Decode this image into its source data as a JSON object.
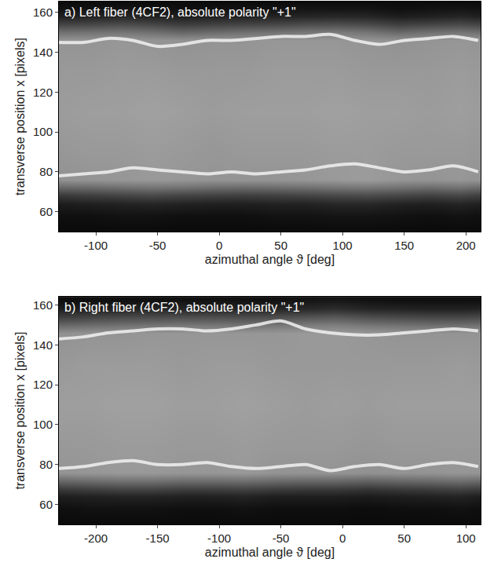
{
  "chart_data": [
    {
      "type": "heatmap",
      "title": "a) Left fiber (4CF2), absolute polarity \"+1\"",
      "x_label": "azimuthal angle ϑ [deg]",
      "y_label": "transverse position x [pixels]",
      "x": [
        -130,
        -105,
        -80,
        -55,
        -30,
        -5,
        20,
        45,
        70,
        95,
        120,
        145,
        170,
        195,
        212
      ],
      "y": [
        50,
        58,
        64,
        68,
        72,
        76,
        90,
        110,
        130,
        146,
        150,
        154,
        158,
        162,
        166
      ],
      "z": [
        [
          0.04,
          0.04,
          0.04,
          0.04,
          0.04,
          0.04,
          0.04,
          0.04,
          0.04,
          0.04,
          0.04,
          0.04,
          0.04,
          0.04,
          0.04
        ],
        [
          0.06,
          0.06,
          0.07,
          0.07,
          0.06,
          0.06,
          0.06,
          0.07,
          0.07,
          0.08,
          0.08,
          0.07,
          0.06,
          0.07,
          0.06
        ],
        [
          0.11,
          0.12,
          0.13,
          0.14,
          0.13,
          0.12,
          0.12,
          0.13,
          0.13,
          0.15,
          0.15,
          0.13,
          0.12,
          0.14,
          0.12
        ],
        [
          0.22,
          0.24,
          0.26,
          0.28,
          0.26,
          0.25,
          0.24,
          0.25,
          0.26,
          0.28,
          0.29,
          0.27,
          0.25,
          0.27,
          0.24
        ],
        [
          0.4,
          0.41,
          0.43,
          0.45,
          0.44,
          0.42,
          0.41,
          0.42,
          0.43,
          0.45,
          0.46,
          0.44,
          0.42,
          0.44,
          0.41
        ],
        [
          0.57,
          0.58,
          0.59,
          0.6,
          0.59,
          0.58,
          0.58,
          0.58,
          0.59,
          0.6,
          0.61,
          0.59,
          0.58,
          0.59,
          0.58
        ],
        [
          0.59,
          0.6,
          0.6,
          0.61,
          0.6,
          0.59,
          0.6,
          0.6,
          0.6,
          0.61,
          0.61,
          0.6,
          0.6,
          0.6,
          0.59
        ],
        [
          0.61,
          0.62,
          0.62,
          0.63,
          0.62,
          0.61,
          0.62,
          0.62,
          0.62,
          0.63,
          0.62,
          0.62,
          0.61,
          0.62,
          0.61
        ],
        [
          0.6,
          0.6,
          0.61,
          0.61,
          0.6,
          0.6,
          0.6,
          0.61,
          0.61,
          0.61,
          0.6,
          0.6,
          0.6,
          0.61,
          0.6
        ],
        [
          0.58,
          0.58,
          0.59,
          0.58,
          0.57,
          0.58,
          0.58,
          0.59,
          0.59,
          0.59,
          0.58,
          0.57,
          0.58,
          0.59,
          0.58
        ],
        [
          0.44,
          0.45,
          0.46,
          0.44,
          0.4,
          0.42,
          0.44,
          0.45,
          0.47,
          0.48,
          0.46,
          0.41,
          0.44,
          0.46,
          0.44
        ],
        [
          0.27,
          0.28,
          0.3,
          0.28,
          0.24,
          0.26,
          0.27,
          0.28,
          0.3,
          0.31,
          0.29,
          0.25,
          0.27,
          0.29,
          0.27
        ],
        [
          0.13,
          0.14,
          0.15,
          0.14,
          0.12,
          0.13,
          0.14,
          0.14,
          0.15,
          0.16,
          0.15,
          0.12,
          0.13,
          0.15,
          0.13
        ],
        [
          0.07,
          0.07,
          0.08,
          0.07,
          0.06,
          0.07,
          0.07,
          0.07,
          0.08,
          0.08,
          0.08,
          0.06,
          0.07,
          0.08,
          0.07
        ],
        [
          0.04,
          0.04,
          0.04,
          0.04,
          0.04,
          0.04,
          0.04,
          0.04,
          0.04,
          0.04,
          0.04,
          0.04,
          0.04,
          0.04,
          0.04
        ]
      ],
      "zlim": [
        0,
        1
      ],
      "xlim": [
        -130,
        212
      ],
      "xticks": [
        -100,
        -50,
        0,
        50,
        100,
        150,
        200
      ],
      "ylim": [
        50,
        165.5
      ],
      "yticks": [
        60,
        80,
        100,
        120,
        140,
        160
      ],
      "series": [
        {
          "type": "line",
          "color": "#f2f2f2",
          "x": [
            -130,
            -110,
            -90,
            -70,
            -50,
            -30,
            -10,
            10,
            30,
            50,
            70,
            90,
            110,
            130,
            150,
            170,
            190,
            210
          ],
          "values": [
            78,
            79,
            80,
            82,
            81,
            80,
            79,
            80,
            79,
            80,
            81,
            83,
            84,
            82,
            80,
            81,
            83,
            80
          ]
        },
        {
          "type": "line",
          "color": "#f2f2f2",
          "x": [
            -130,
            -110,
            -90,
            -70,
            -50,
            -30,
            -10,
            10,
            30,
            50,
            70,
            90,
            110,
            130,
            150,
            170,
            190,
            210
          ],
          "values": [
            145,
            145,
            147,
            146,
            143,
            144,
            146,
            146,
            147,
            148,
            148,
            149,
            146,
            144,
            146,
            147,
            148,
            146
          ]
        }
      ]
    },
    {
      "type": "heatmap",
      "title": "b) Right fiber (4CF2), absolute polarity \"+1\"",
      "x_label": "azimuthal angle ϑ [deg]",
      "y_label": "transverse position x [pixels]",
      "x": [
        -230,
        -205,
        -180,
        -155,
        -130,
        -105,
        -80,
        -55,
        -30,
        -5,
        20,
        45,
        70,
        95,
        112
      ],
      "y": [
        50,
        58,
        64,
        68,
        72,
        76,
        90,
        110,
        130,
        146,
        150,
        154,
        158,
        162,
        166
      ],
      "z": [
        [
          0.04,
          0.04,
          0.04,
          0.04,
          0.04,
          0.04,
          0.04,
          0.04,
          0.04,
          0.04,
          0.04,
          0.04,
          0.04,
          0.04,
          0.04
        ],
        [
          0.06,
          0.07,
          0.07,
          0.07,
          0.06,
          0.06,
          0.07,
          0.06,
          0.06,
          0.06,
          0.05,
          0.06,
          0.06,
          0.07,
          0.06
        ],
        [
          0.12,
          0.13,
          0.14,
          0.14,
          0.13,
          0.13,
          0.14,
          0.12,
          0.12,
          0.12,
          0.11,
          0.12,
          0.13,
          0.14,
          0.12
        ],
        [
          0.24,
          0.26,
          0.28,
          0.28,
          0.26,
          0.26,
          0.27,
          0.25,
          0.24,
          0.24,
          0.22,
          0.24,
          0.25,
          0.27,
          0.25
        ],
        [
          0.41,
          0.43,
          0.45,
          0.45,
          0.43,
          0.43,
          0.44,
          0.42,
          0.41,
          0.41,
          0.39,
          0.41,
          0.42,
          0.44,
          0.42
        ],
        [
          0.58,
          0.59,
          0.6,
          0.6,
          0.59,
          0.59,
          0.6,
          0.58,
          0.58,
          0.58,
          0.57,
          0.58,
          0.58,
          0.59,
          0.58
        ],
        [
          0.6,
          0.6,
          0.61,
          0.61,
          0.6,
          0.6,
          0.61,
          0.6,
          0.6,
          0.6,
          0.59,
          0.6,
          0.6,
          0.6,
          0.6
        ],
        [
          0.62,
          0.62,
          0.63,
          0.63,
          0.62,
          0.62,
          0.63,
          0.62,
          0.61,
          0.62,
          0.61,
          0.62,
          0.62,
          0.62,
          0.62
        ],
        [
          0.6,
          0.61,
          0.61,
          0.61,
          0.6,
          0.61,
          0.61,
          0.6,
          0.6,
          0.6,
          0.6,
          0.6,
          0.6,
          0.61,
          0.6
        ],
        [
          0.57,
          0.58,
          0.58,
          0.59,
          0.59,
          0.59,
          0.59,
          0.59,
          0.6,
          0.6,
          0.59,
          0.58,
          0.58,
          0.58,
          0.58
        ],
        [
          0.41,
          0.43,
          0.45,
          0.46,
          0.47,
          0.47,
          0.46,
          0.47,
          0.49,
          0.5,
          0.47,
          0.45,
          0.44,
          0.44,
          0.45
        ],
        [
          0.24,
          0.26,
          0.28,
          0.29,
          0.3,
          0.3,
          0.29,
          0.3,
          0.32,
          0.34,
          0.3,
          0.28,
          0.27,
          0.27,
          0.28
        ],
        [
          0.12,
          0.13,
          0.14,
          0.15,
          0.15,
          0.15,
          0.15,
          0.15,
          0.16,
          0.18,
          0.15,
          0.14,
          0.13,
          0.13,
          0.14
        ],
        [
          0.06,
          0.07,
          0.07,
          0.08,
          0.08,
          0.08,
          0.08,
          0.08,
          0.09,
          0.1,
          0.08,
          0.07,
          0.07,
          0.07,
          0.07
        ],
        [
          0.04,
          0.04,
          0.04,
          0.04,
          0.04,
          0.04,
          0.04,
          0.04,
          0.05,
          0.05,
          0.04,
          0.04,
          0.04,
          0.04,
          0.04
        ]
      ],
      "zlim": [
        0,
        1
      ],
      "xlim": [
        -230,
        112
      ],
      "xticks": [
        -200,
        -150,
        -100,
        -50,
        0,
        50,
        100
      ],
      "ylim": [
        50,
        164
      ],
      "yticks": [
        60,
        80,
        100,
        120,
        140,
        160
      ],
      "series": [
        {
          "type": "line",
          "color": "#f2f2f2",
          "x": [
            -230,
            -210,
            -190,
            -170,
            -150,
            -130,
            -110,
            -90,
            -70,
            -50,
            -30,
            -10,
            10,
            30,
            50,
            70,
            90,
            110
          ],
          "values": [
            78,
            79,
            81,
            82,
            80,
            80,
            81,
            79,
            78,
            79,
            80,
            77,
            79,
            80,
            78,
            80,
            81,
            79
          ]
        },
        {
          "type": "line",
          "color": "#f2f2f2",
          "x": [
            -230,
            -210,
            -190,
            -170,
            -150,
            -130,
            -110,
            -90,
            -70,
            -50,
            -30,
            -10,
            10,
            30,
            50,
            70,
            90,
            110
          ],
          "values": [
            143,
            144,
            146,
            147,
            148,
            148,
            147,
            148,
            150,
            152,
            148,
            146,
            145,
            145,
            146,
            147,
            148,
            147
          ]
        }
      ]
    }
  ]
}
